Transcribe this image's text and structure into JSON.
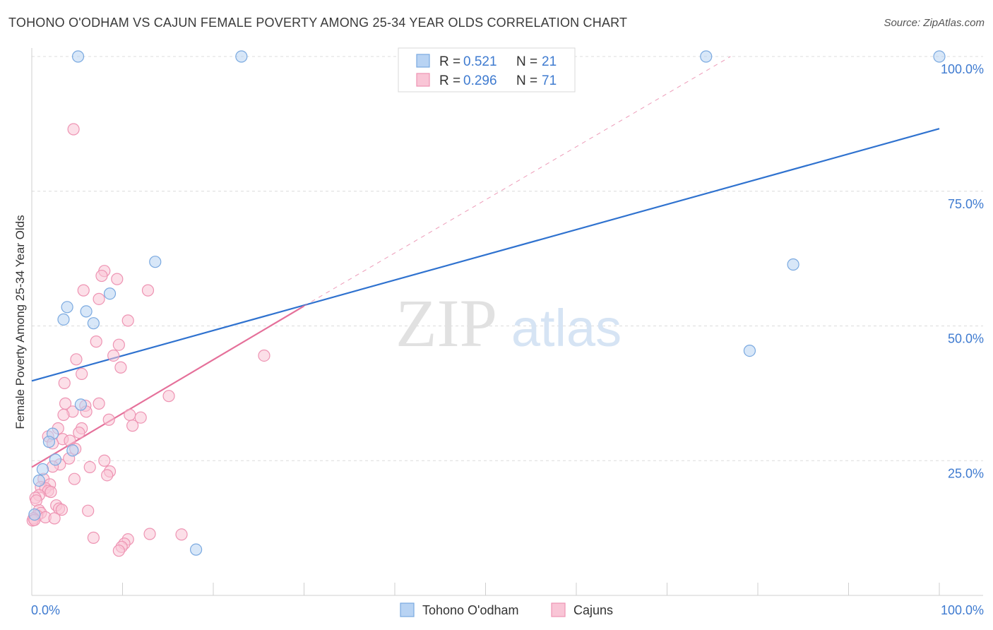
{
  "title": "TOHONO O'ODHAM VS CAJUN FEMALE POVERTY AMONG 25-34 YEAR OLDS CORRELATION CHART",
  "source": "Source: ZipAtlas.com",
  "watermark": {
    "zip": "ZIP",
    "atlas": "atlas"
  },
  "colors": {
    "blue_fill": "#b8d3f3",
    "blue_stroke": "#7aa9e0",
    "blue_line": "#2f72cf",
    "pink_fill": "#f9c5d6",
    "pink_stroke": "#ee94b3",
    "pink_line": "#e5709a",
    "value_text": "#3f7bd0",
    "grid": "#dcdcdc"
  },
  "legend": [
    {
      "r_label": "R =",
      "r_value": "0.521",
      "n_label": "N =",
      "n_value": "21",
      "series": "blue"
    },
    {
      "r_label": "R =",
      "r_value": "0.296",
      "n_label": "N =",
      "n_value": "71",
      "series": "pink"
    }
  ],
  "chart_data": {
    "type": "scatter",
    "title": "TOHONO O'ODHAM VS CAJUN FEMALE POVERTY AMONG 25-34 YEAR OLDS CORRELATION CHART",
    "xlabel": "",
    "ylabel": "Female Poverty Among 25-34 Year Olds",
    "xlim": [
      0,
      100
    ],
    "ylim": [
      0,
      100
    ],
    "x_tick_labels": [
      "0.0%",
      "100.0%"
    ],
    "y_tick_labels": [
      {
        "value": 25,
        "label": "25.0%"
      },
      {
        "value": 50,
        "label": "50.0%"
      },
      {
        "value": 75,
        "label": "75.0%"
      },
      {
        "value": 100,
        "label": "100.0%"
      }
    ],
    "grid": true,
    "series": [
      {
        "name": "Tohono O'odham",
        "color": "blue",
        "points": [
          [
            5.1,
            100
          ],
          [
            23.1,
            100
          ],
          [
            74.3,
            100
          ],
          [
            100,
            100
          ],
          [
            13.6,
            61.9
          ],
          [
            8.6,
            56
          ],
          [
            3.9,
            53.5
          ],
          [
            6.0,
            52.7
          ],
          [
            3.5,
            51.2
          ],
          [
            6.8,
            50.5
          ],
          [
            83.9,
            61.4
          ],
          [
            79.1,
            45.4
          ],
          [
            5.4,
            35.4
          ],
          [
            2.3,
            30
          ],
          [
            1.9,
            28.5
          ],
          [
            4.5,
            26.9
          ],
          [
            2.6,
            25.2
          ],
          [
            1.2,
            23.4
          ],
          [
            0.8,
            21.3
          ],
          [
            0.3,
            15
          ],
          [
            18.1,
            8.5
          ]
        ],
        "trend": {
          "x0": 0,
          "y0": 39.8,
          "x1": 100,
          "y1": 86.6
        }
      },
      {
        "name": "Cajuns",
        "color": "pink",
        "points": [
          [
            4.6,
            86.5
          ],
          [
            8.0,
            60.2
          ],
          [
            7.7,
            59.3
          ],
          [
            9.4,
            58.7
          ],
          [
            5.7,
            56.6
          ],
          [
            12.8,
            56.6
          ],
          [
            7.4,
            55
          ],
          [
            10.6,
            51
          ],
          [
            7.1,
            47.1
          ],
          [
            9.6,
            46.5
          ],
          [
            9.0,
            44.5
          ],
          [
            25.6,
            44.5
          ],
          [
            4.9,
            43.8
          ],
          [
            9.8,
            42.3
          ],
          [
            5.5,
            41.1
          ],
          [
            3.6,
            39.4
          ],
          [
            15.1,
            37
          ],
          [
            7.4,
            35.6
          ],
          [
            3.7,
            35.6
          ],
          [
            5.9,
            35.2
          ],
          [
            4.5,
            34.1
          ],
          [
            6.0,
            34.1
          ],
          [
            3.5,
            33.5
          ],
          [
            10.8,
            33.5
          ],
          [
            12.0,
            33.0
          ],
          [
            8.5,
            32.6
          ],
          [
            11.1,
            31.5
          ],
          [
            2.9,
            31
          ],
          [
            5.5,
            31
          ],
          [
            5.2,
            30.2
          ],
          [
            1.8,
            29.5
          ],
          [
            3.4,
            29
          ],
          [
            4.2,
            28.7
          ],
          [
            2.3,
            28.2
          ],
          [
            4.8,
            27.2
          ],
          [
            4.1,
            25.4
          ],
          [
            8.0,
            25
          ],
          [
            3.1,
            24.3
          ],
          [
            2.3,
            23.9
          ],
          [
            6.4,
            23.8
          ],
          [
            8.6,
            23.0
          ],
          [
            8.3,
            22.3
          ],
          [
            4.7,
            21.6
          ],
          [
            1.3,
            21.6
          ],
          [
            2.0,
            20.6
          ],
          [
            1.0,
            20.1
          ],
          [
            1.5,
            19.9
          ],
          [
            1.8,
            19.4
          ],
          [
            0.8,
            18.6
          ],
          [
            0.4,
            18.1
          ],
          [
            0.5,
            17.6
          ],
          [
            2.7,
            16.7
          ],
          [
            3.0,
            16.1
          ],
          [
            3.3,
            15.9
          ],
          [
            6.2,
            15.7
          ],
          [
            0.8,
            15.8
          ],
          [
            1.0,
            15.3
          ],
          [
            0.6,
            14.8
          ],
          [
            1.5,
            14.5
          ],
          [
            2.5,
            14.3
          ],
          [
            0.2,
            14.3
          ],
          [
            0.1,
            13.9
          ],
          [
            13.0,
            11.4
          ],
          [
            16.5,
            11.3
          ],
          [
            10.6,
            10.4
          ],
          [
            6.8,
            10.7
          ],
          [
            10.2,
            9.6
          ],
          [
            9.9,
            9.0
          ],
          [
            9.6,
            8.3
          ],
          [
            0.3,
            14.0
          ],
          [
            2.1,
            19.2
          ]
        ],
        "trend": {
          "x0": 0,
          "y0": 23.8,
          "x1": 30,
          "y1": 53.7
        },
        "trend_dashed": {
          "x0": 30,
          "y0": 53.7,
          "x1": 77,
          "y1": 100
        }
      }
    ]
  },
  "bottom_legend": [
    {
      "label": "Tohono O'odham",
      "color": "blue"
    },
    {
      "label": "Cajuns",
      "color": "pink"
    }
  ]
}
